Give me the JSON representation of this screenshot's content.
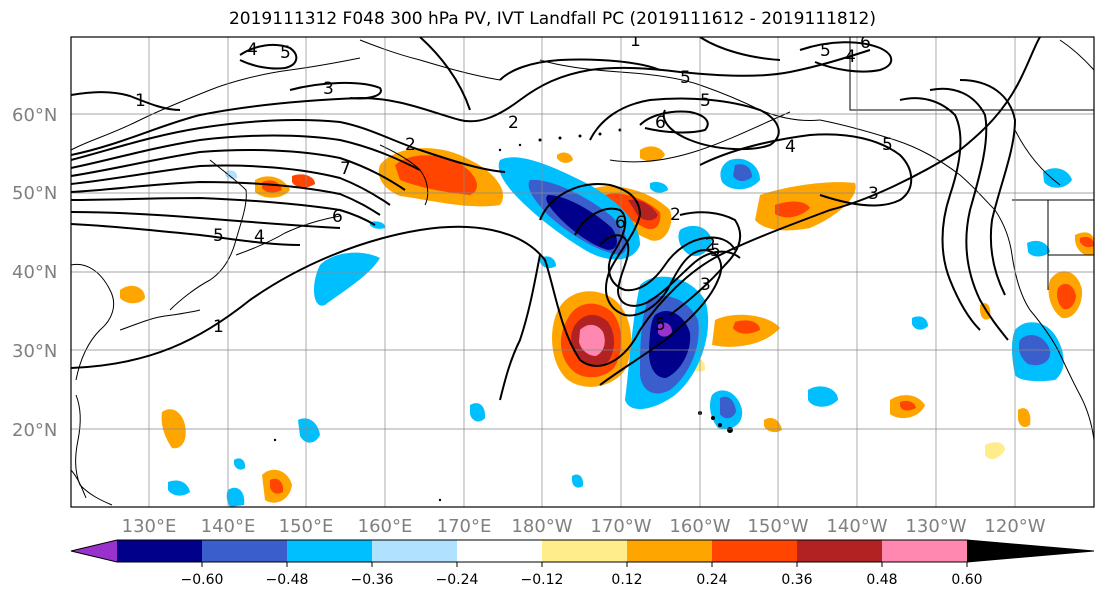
{
  "title": "2019111312 F048 300 hPa PV, IVT Landfall PC (2019111612 - 2019111812)",
  "lat_labels": [
    "60°N",
    "50°N",
    "40°N",
    "30°N",
    "20°N"
  ],
  "lon_labels": [
    "130°E",
    "140°E",
    "150°E",
    "160°E",
    "170°E",
    "180°W",
    "170°W",
    "160°W",
    "150°W",
    "140°W",
    "130°W",
    "120°W"
  ],
  "contour_labels": [
    "1",
    "6",
    "5",
    "5",
    "4",
    "5",
    "4",
    "6",
    "5",
    "3",
    "2",
    "1",
    "2",
    "7",
    "6",
    "5",
    "4",
    "5",
    "6",
    "2",
    "2",
    "3",
    "4",
    "5",
    "1",
    "5",
    "3"
  ],
  "colorbar": {
    "ticks": [
      "−0.60",
      "−0.48",
      "−0.36",
      "−0.24",
      "−0.12",
      "0.12",
      "0.24",
      "0.36",
      "0.48",
      "0.60"
    ],
    "colors": [
      "#9932cc",
      "#00008b",
      "#3a5fcd",
      "#00bfff",
      "#b0e2ff",
      "#ffffff",
      "#ffec8b",
      "#ffa500",
      "#ff4500",
      "#b22222",
      "#ff88b0"
    ]
  }
}
